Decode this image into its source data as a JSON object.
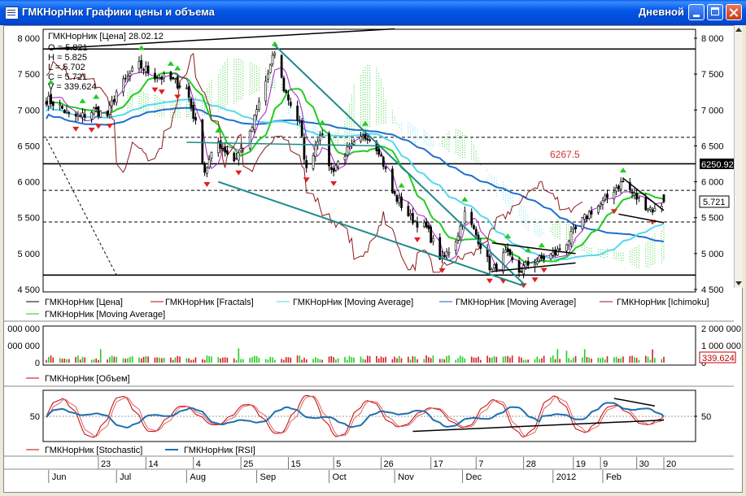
{
  "window": {
    "title": "ГМКНорНик Графики цены и объема",
    "period": "Дневной"
  },
  "info": {
    "header": "ГМКНорНик [Цена] 28.02.12",
    "lines": [
      "O = 5.821",
      "H = 5.825",
      "L = 5.702",
      "C = 5.721",
      "V = 339.624"
    ]
  },
  "price_axis": {
    "labels": [
      "8 000",
      "7 500",
      "7 000",
      "6 500",
      "6 000",
      "5 500",
      "5 000",
      "4 500"
    ],
    "current": "5.721",
    "level": "6250.92",
    "annotation": "6267.5"
  },
  "legend_price": [
    {
      "label": "ГМКНорНик [Цена]",
      "color": "#000000"
    },
    {
      "label": "ГМКНорНик [Fractals]",
      "color": "#c00000"
    },
    {
      "label": "ГМКНорНик [Moving Average]",
      "color": "#55d8f0"
    },
    {
      "label": "ГМКНорНик [Moving Average]",
      "color": "#1f5fa8"
    },
    {
      "label": "ГМКНорНик [Ichimoku]",
      "color": "#8b1a1a"
    },
    {
      "label": "ГМКНорНик [Moving Average]",
      "color": "#22cc22"
    }
  ],
  "volume_axis": {
    "labels": [
      "2 000 000",
      "1 000 000",
      "0"
    ],
    "left_labels": [
      "000 000",
      "000 000",
      "0"
    ],
    "current": "339.624"
  },
  "legend_volume": [
    {
      "label": "ГМКНорНик [Объем]",
      "color": "#c00000"
    }
  ],
  "osc_axis": {
    "labels": [
      "50"
    ]
  },
  "legend_osc": [
    {
      "label": "ГМКНорНик [Stochastic]",
      "color": "#c00000"
    },
    {
      "label": "ГМКНорНик [RSI]",
      "color": "#1f6fb0"
    }
  ],
  "date_axis": {
    "days": [
      "23",
      "14",
      "4",
      "25",
      "15",
      "5",
      "26",
      "17",
      "7",
      "28",
      "19",
      "9",
      "30",
      "20"
    ],
    "months": [
      "Jun",
      "Jul",
      "Aug",
      "Sep",
      "Oct",
      "Nov",
      "Dec",
      "2012",
      "Feb"
    ]
  },
  "colors": {
    "up_candle": "#ffffff",
    "down_candle": "#000000",
    "kumo_up": "#22cc22",
    "kumo_down": "#55d8f0",
    "ma_fast": "#22cc22",
    "ma_mid": "#55d8f0",
    "ma_slow": "#1f6fd0",
    "fractal_up": "#22cc22",
    "fractal_down": "#e02020"
  },
  "chart_data": {
    "type": "candlestick",
    "price_range": [
      4500,
      8000
    ],
    "volume_range": [
      0,
      2000000
    ],
    "osc_range": [
      0,
      100
    ],
    "anchors": [
      [
        "2011-05-31",
        7150
      ],
      [
        "2011-06-06",
        7050
      ],
      [
        "2011-06-10",
        6920
      ],
      [
        "2011-06-15",
        6900
      ],
      [
        "2011-06-21",
        7000
      ],
      [
        "2011-06-27",
        6920
      ],
      [
        "2011-07-01",
        7250
      ],
      [
        "2011-07-07",
        7500
      ],
      [
        "2011-07-11",
        7620
      ],
      [
        "2011-07-18",
        7480
      ],
      [
        "2011-07-25",
        7420
      ],
      [
        "2011-08-01",
        7300
      ],
      [
        "2011-08-05",
        6800
      ],
      [
        "2011-08-09",
        6150
      ],
      [
        "2011-08-15",
        6550
      ],
      [
        "2011-08-22",
        6300
      ],
      [
        "2011-08-29",
        6650
      ],
      [
        "2011-09-02",
        7100
      ],
      [
        "2011-09-07",
        7600
      ],
      [
        "2011-09-09",
        7800
      ],
      [
        "2011-09-13",
        7300
      ],
      [
        "2011-09-20",
        6800
      ],
      [
        "2011-09-23",
        6150
      ],
      [
        "2011-09-29",
        6700
      ],
      [
        "2011-10-04",
        6150
      ],
      [
        "2011-10-10",
        6400
      ],
      [
        "2011-10-14",
        6500
      ],
      [
        "2011-10-20",
        6650
      ],
      [
        "2011-10-25",
        6450
      ],
      [
        "2011-10-31",
        5850
      ],
      [
        "2011-11-08",
        5500
      ],
      [
        "2011-11-15",
        5350
      ],
      [
        "2011-11-22",
        4900
      ],
      [
        "2011-11-28",
        5200
      ],
      [
        "2011-12-02",
        5550
      ],
      [
        "2011-12-08",
        5200
      ],
      [
        "2011-12-14",
        4750
      ],
      [
        "2011-12-20",
        5000
      ],
      [
        "2011-12-26",
        4750
      ],
      [
        "2011-12-30",
        4850
      ],
      [
        "2012-01-11",
        5000
      ],
      [
        "2012-01-17",
        5200
      ],
      [
        "2012-01-23",
        5450
      ],
      [
        "2012-01-27",
        5600
      ],
      [
        "2012-02-01",
        5700
      ],
      [
        "2012-02-06",
        5900
      ],
      [
        "2012-02-10",
        6000
      ],
      [
        "2012-02-15",
        5800
      ],
      [
        "2012-02-21",
        5650
      ],
      [
        "2012-02-24",
        5600
      ],
      [
        "2012-02-28",
        5721
      ]
    ],
    "last_candle": {
      "date": "2012-02-28",
      "open": 5821,
      "high": 5825,
      "low": 5702,
      "close": 5721,
      "volume": 339624
    },
    "horizontal_levels": [
      7850,
      6250.92,
      4700
    ],
    "dashed_levels": [
      6620,
      5880,
      5440
    ],
    "annotation_level": 6267.5
  }
}
